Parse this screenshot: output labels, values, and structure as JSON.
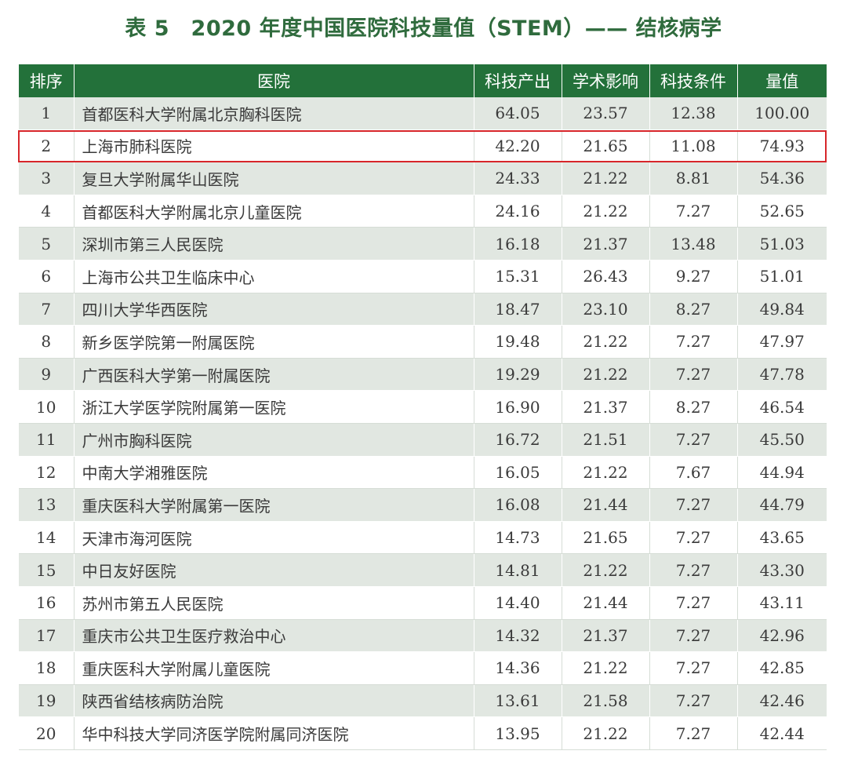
{
  "title": "表 5　2020 年度中国医院科技量值（STEM）—— 结核病学",
  "table": {
    "headers": [
      "排序",
      "医院",
      "科技产出",
      "学术影响",
      "科技条件",
      "量值"
    ],
    "rows": [
      [
        "1",
        "首都医科大学附属北京胸科医院",
        "64.05",
        "23.57",
        "12.38",
        "100.00"
      ],
      [
        "2",
        "上海市肺科医院",
        "42.20",
        "21.65",
        "11.08",
        "74.93"
      ],
      [
        "3",
        "复旦大学附属华山医院",
        "24.33",
        "21.22",
        "8.81",
        "54.36"
      ],
      [
        "4",
        "首都医科大学附属北京儿童医院",
        "24.16",
        "21.22",
        "7.27",
        "52.65"
      ],
      [
        "5",
        "深圳市第三人民医院",
        "16.18",
        "21.37",
        "13.48",
        "51.03"
      ],
      [
        "6",
        "上海市公共卫生临床中心",
        "15.31",
        "26.43",
        "9.27",
        "51.01"
      ],
      [
        "7",
        "四川大学华西医院",
        "18.47",
        "23.10",
        "8.27",
        "49.84"
      ],
      [
        "8",
        "新乡医学院第一附属医院",
        "19.48",
        "21.22",
        "7.27",
        "47.97"
      ],
      [
        "9",
        "广西医科大学第一附属医院",
        "19.29",
        "21.22",
        "7.27",
        "47.78"
      ],
      [
        "10",
        "浙江大学医学院附属第一医院",
        "16.90",
        "21.37",
        "8.27",
        "46.54"
      ],
      [
        "11",
        "广州市胸科医院",
        "16.72",
        "21.51",
        "7.27",
        "45.50"
      ],
      [
        "12",
        "中南大学湘雅医院",
        "16.05",
        "21.22",
        "7.67",
        "44.94"
      ],
      [
        "13",
        "重庆医科大学附属第一医院",
        "16.08",
        "21.44",
        "7.27",
        "44.79"
      ],
      [
        "14",
        "天津市海河医院",
        "14.73",
        "21.65",
        "7.27",
        "43.65"
      ],
      [
        "15",
        "中日友好医院",
        "14.81",
        "21.22",
        "7.27",
        "43.30"
      ],
      [
        "16",
        "苏州市第五人民医院",
        "14.40",
        "21.44",
        "7.27",
        "43.11"
      ],
      [
        "17",
        "重庆市公共卫生医疗救治中心",
        "14.32",
        "21.37",
        "7.27",
        "42.96"
      ],
      [
        "18",
        "重庆医科大学附属儿童医院",
        "14.36",
        "21.22",
        "7.27",
        "42.85"
      ],
      [
        "19",
        "陕西省结核病防治院",
        "13.61",
        "21.58",
        "7.27",
        "42.46"
      ],
      [
        "20",
        "华中科技大学同济医学院附属同济医院",
        "13.95",
        "21.22",
        "7.27",
        "42.44"
      ]
    ],
    "highlighted_rank": "2"
  },
  "colors": {
    "header_bg": "#23713a",
    "title": "#2f6b3d",
    "stripe": "#e1e7e1",
    "highlight_border": "#d7262a"
  }
}
